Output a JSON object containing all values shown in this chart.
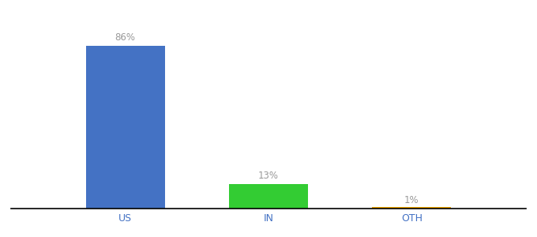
{
  "categories": [
    "US",
    "IN",
    "OTH"
  ],
  "values": [
    86,
    13,
    1
  ],
  "bar_colors": [
    "#4472c4",
    "#33cc33",
    "#f0a500"
  ],
  "labels": [
    "86%",
    "13%",
    "1%"
  ],
  "background_color": "#ffffff",
  "label_color": "#999999",
  "tick_color": "#4472c4",
  "ylim": [
    0,
    100
  ],
  "bar_width": 0.55,
  "label_fontsize": 8.5,
  "tick_fontsize": 9
}
